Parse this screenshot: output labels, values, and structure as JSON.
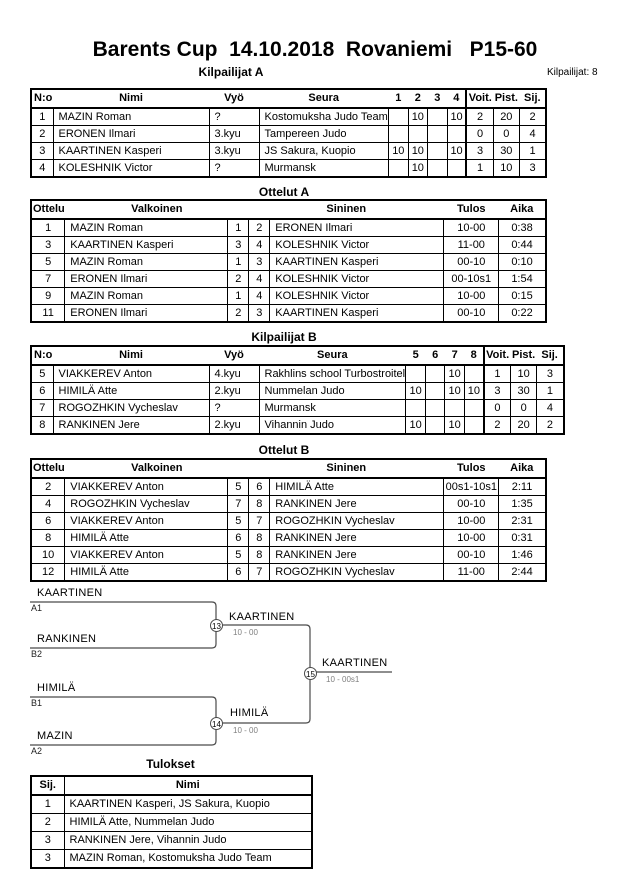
{
  "header": {
    "title": "Barents Cup  14.10.2018  Rovaniemi   P15-60",
    "competitors_count_label": "Kilpailijat: 8"
  },
  "pool_a": {
    "title": "Kilpailijat A",
    "columns": [
      "N:o",
      "Nimi",
      "Vyö",
      "Seura",
      "1",
      "2",
      "3",
      "4",
      "Voit.",
      "Pist.",
      "Sij."
    ],
    "rows": [
      [
        "1",
        "MAZIN Roman",
        "?",
        "Kostomuksha Judo Team",
        "",
        "10",
        "",
        "10",
        "2",
        "20",
        "2"
      ],
      [
        "2",
        "ERONEN Ilmari",
        "3.kyu",
        "Tampereen Judo",
        "",
        "",
        "",
        "",
        "0",
        "0",
        "4"
      ],
      [
        "3",
        "KAARTINEN Kasperi",
        "3.kyu",
        "JS Sakura, Kuopio",
        "10",
        "10",
        "",
        "10",
        "3",
        "30",
        "1"
      ],
      [
        "4",
        "KOLESHNIK Victor",
        "?",
        "Murmansk",
        "",
        "10",
        "",
        "",
        "1",
        "10",
        "3"
      ]
    ]
  },
  "matches_a": {
    "title": "Ottelut A",
    "columns": [
      "Ottelu",
      "Valkoinen",
      "Sininen",
      "Tulos",
      "Aika"
    ],
    "rows": [
      [
        "1",
        "MAZIN Roman",
        "1",
        "2",
        "ERONEN Ilmari",
        "10-00",
        "0:38"
      ],
      [
        "3",
        "KAARTINEN Kasperi",
        "3",
        "4",
        "KOLESHNIK Victor",
        "11-00",
        "0:44"
      ],
      [
        "5",
        "MAZIN Roman",
        "1",
        "3",
        "KAARTINEN Kasperi",
        "00-10",
        "0:10"
      ],
      [
        "7",
        "ERONEN Ilmari",
        "2",
        "4",
        "KOLESHNIK Victor",
        "00-10s1",
        "1:54"
      ],
      [
        "9",
        "MAZIN Roman",
        "1",
        "4",
        "KOLESHNIK Victor",
        "10-00",
        "0:15"
      ],
      [
        "11",
        "ERONEN Ilmari",
        "2",
        "3",
        "KAARTINEN Kasperi",
        "00-10",
        "0:22"
      ]
    ]
  },
  "pool_b": {
    "title": "Kilpailijat B",
    "columns": [
      "N:o",
      "Nimi",
      "Vyö",
      "Seura",
      "5",
      "6",
      "7",
      "8",
      "Voit.",
      "Pist.",
      "Sij."
    ],
    "rows": [
      [
        "5",
        "VIAKKEREV Anton",
        "4.kyu",
        "Rakhlins school Turbostroitel",
        "",
        "",
        "10",
        "",
        "1",
        "10",
        "3"
      ],
      [
        "6",
        "HIMILÄ Atte",
        "2.kyu",
        "Nummelan Judo",
        "10",
        "",
        "10",
        "10",
        "3",
        "30",
        "1"
      ],
      [
        "7",
        "ROGOZHKIN Vycheslav",
        "?",
        "Murmansk",
        "",
        "",
        "",
        "",
        "0",
        "0",
        "4"
      ],
      [
        "8",
        "RANKINEN Jere",
        "2.kyu",
        "Vihannin Judo",
        "10",
        "",
        "10",
        "",
        "2",
        "20",
        "2"
      ]
    ]
  },
  "matches_b": {
    "title": "Ottelut B",
    "columns": [
      "Ottelu",
      "Valkoinen",
      "Sininen",
      "Tulos",
      "Aika"
    ],
    "rows": [
      [
        "2",
        "VIAKKEREV Anton",
        "5",
        "6",
        "HIMILÄ Atte",
        "00s1-10s1",
        "2:11"
      ],
      [
        "4",
        "ROGOZHKIN Vycheslav",
        "7",
        "8",
        "RANKINEN Jere",
        "00-10",
        "1:35"
      ],
      [
        "6",
        "VIAKKEREV Anton",
        "5",
        "7",
        "ROGOZHKIN Vycheslav",
        "10-00",
        "2:31"
      ],
      [
        "8",
        "HIMILÄ Atte",
        "6",
        "8",
        "RANKINEN Jere",
        "10-00",
        "0:31"
      ],
      [
        "10",
        "VIAKKEREV Anton",
        "5",
        "8",
        "RANKINEN Jere",
        "00-10",
        "1:46"
      ],
      [
        "12",
        "HIMILÄ Atte",
        "6",
        "7",
        "ROGOZHKIN Vycheslav",
        "11-00",
        "2:44"
      ]
    ]
  },
  "bracket": {
    "entrants": [
      {
        "name": "KAARTINEN",
        "seed": "A1"
      },
      {
        "name": "RANKINEN",
        "seed": "B2"
      },
      {
        "name": "HIMILÄ",
        "seed": "B1"
      },
      {
        "name": "MAZIN",
        "seed": "A2"
      }
    ],
    "semifinal_1": {
      "match_no": "13",
      "winner": "KAARTINEN",
      "score": "10 - 00"
    },
    "semifinal_2": {
      "match_no": "14",
      "winner": "HIMILÄ",
      "score": "10 - 00"
    },
    "final": {
      "match_no": "15",
      "winner": "KAARTINEN",
      "score": "10 - 00s1"
    },
    "line_color": "#4a4a4a"
  },
  "results": {
    "title": "Tulokset",
    "columns": [
      "Sij.",
      "Nimi"
    ],
    "rows": [
      [
        "1",
        "KAARTINEN Kasperi, JS Sakura, Kuopio"
      ],
      [
        "2",
        "HIMILÄ Atte, Nummelan Judo"
      ],
      [
        "3",
        "RANKINEN Jere, Vihannin Judo"
      ],
      [
        "3",
        "MAZIN Roman, Kostomuksha Judo Team"
      ]
    ]
  }
}
